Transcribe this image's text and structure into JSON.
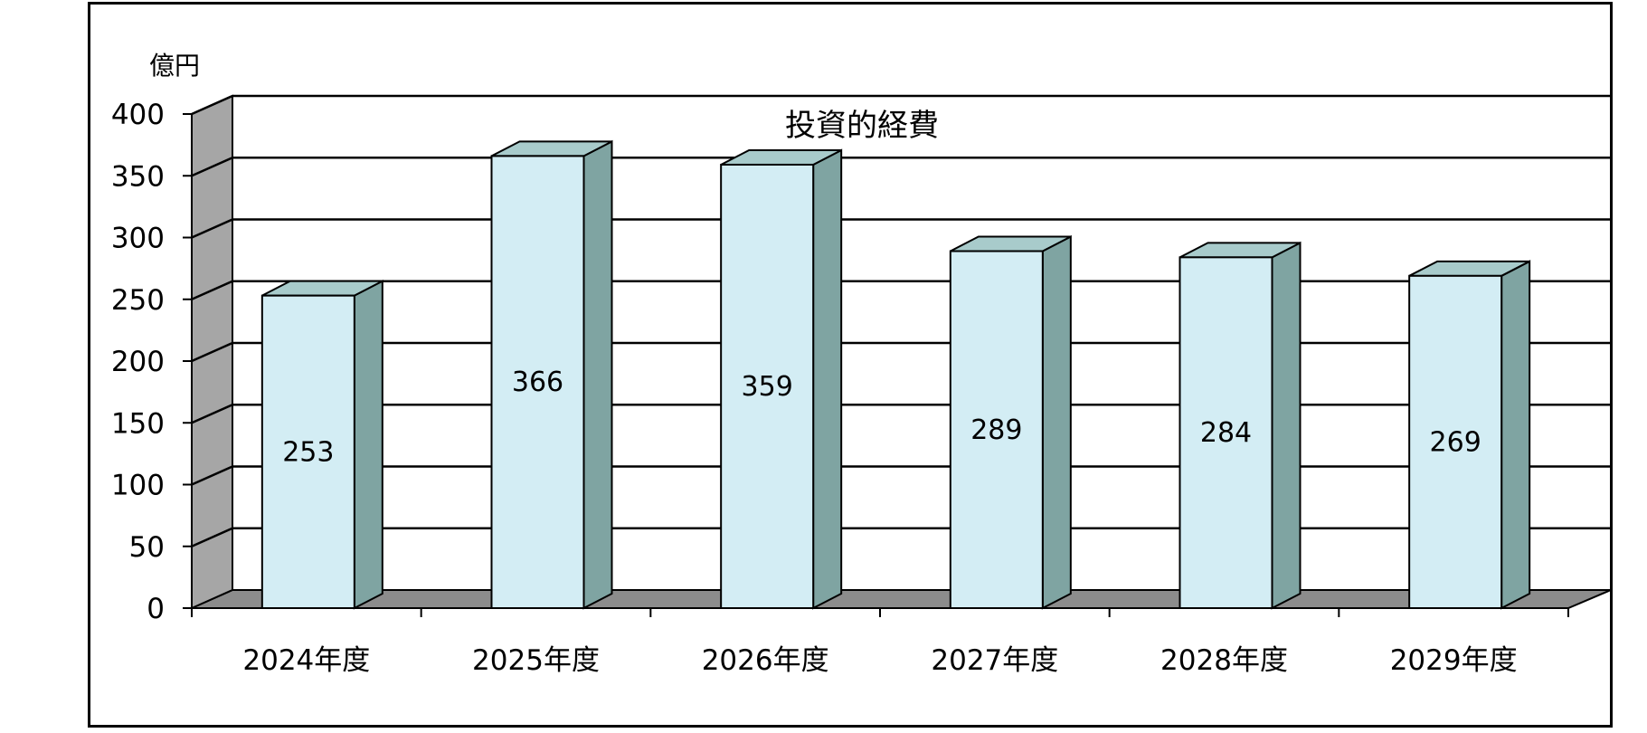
{
  "chart_data": {
    "type": "bar",
    "title": "投資的経費",
    "unit_label": "億円",
    "xlabel": "",
    "ylabel": "",
    "categories": [
      "2024年度",
      "2025年度",
      "2026年度",
      "2027年度",
      "2028年度",
      "2029年度"
    ],
    "values": [
      253,
      366,
      359,
      289,
      284,
      269
    ],
    "ylim": [
      0,
      400
    ],
    "yticks": [
      0,
      50,
      100,
      150,
      200,
      250,
      300,
      350,
      400
    ],
    "grid": true,
    "three_d": true,
    "colors": {
      "bar_front": "#d3edf4",
      "bar_side": "#7fa4a2",
      "bar_top": "#a8cbcb",
      "wall": "#a6a6a6",
      "floor": "#8c8c8c"
    }
  }
}
